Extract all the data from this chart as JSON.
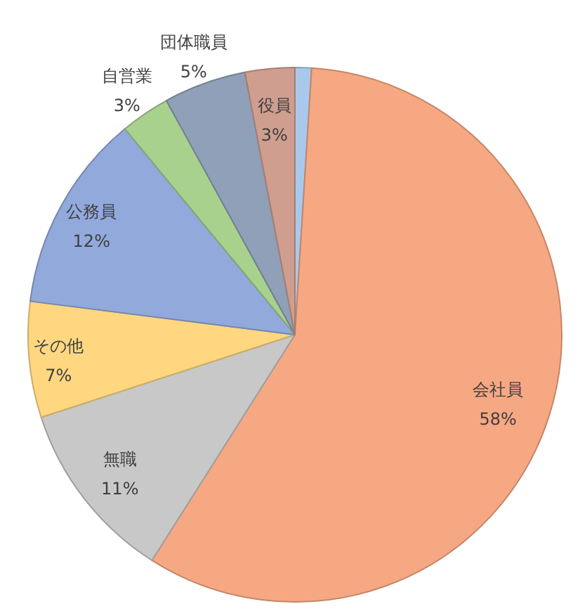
{
  "chart_data": {
    "type": "pie",
    "categories": [
      null,
      "会社員",
      "無職",
      "その他",
      "公務員",
      "自営業",
      "団体職員",
      "役員"
    ],
    "values": [
      1,
      58,
      11,
      7,
      12,
      3,
      5,
      3
    ],
    "value_labels": [
      null,
      "58%",
      "11%",
      "7%",
      "12%",
      "3%",
      "5%",
      "3%"
    ],
    "colors": [
      "#a9c9ec",
      "#f6a883",
      "#c8c8c8",
      "#ffd780",
      "#92a9dc",
      "#a9d18e",
      "#8fa0b8",
      "#cf9e8e"
    ]
  }
}
